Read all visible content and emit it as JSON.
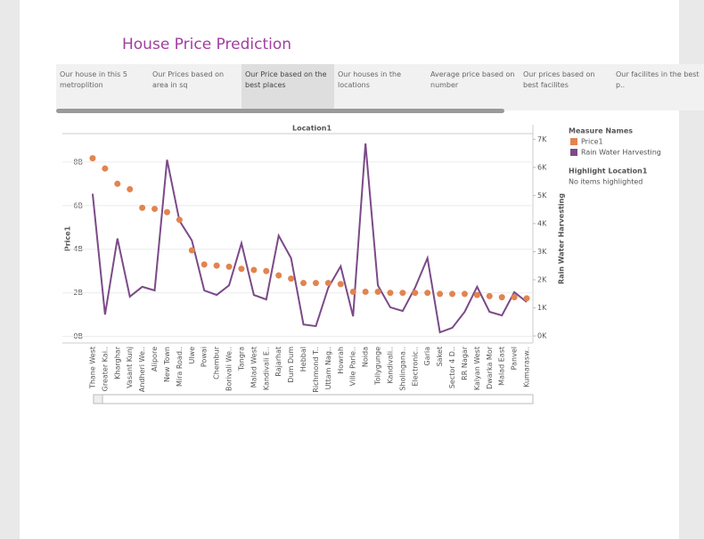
{
  "title": "House Price Prediction",
  "tabs": [
    "Our house in this 5 metroplition",
    "Our Prices based on area in sq",
    "Our Price based on the best places",
    "Our houses in the locations",
    "Average price based on number",
    "Our prices based on best facilites",
    "Our facilites in the best p.."
  ],
  "legend_title": "Measure Names",
  "highlight_title": "Highlight Location1",
  "highlight_text": "No items highlighted",
  "chart_data": {
    "type": "dual-axis",
    "header": "Location1",
    "y_label": "Price1",
    "y2_label": "Rain Water Harvesting",
    "categories": [
      "Thane West",
      "Greater Kai..",
      "Kharghar",
      "Vasant Kunj",
      "Andheri We..",
      "Alipore",
      "New Town",
      "Mira Road..",
      "Ulwe",
      "Powai",
      "Chembur",
      "Borivali We..",
      "Tangra",
      "Malad West",
      "Kandivali E..",
      "Rajarhat",
      "Dum Dum",
      "Hebbal",
      "Richmond T..",
      "Uttam Nag..",
      "Howrah",
      "Ville Parle..",
      "Noida",
      "Tollygunge",
      "Kandivali..",
      "Sholingana..",
      "Electronic..",
      "Garia",
      "Saket",
      "Sector 4 D..",
      "RR Nagar",
      "Kalyan West",
      "Dwarka Mor",
      "Malad East",
      "Panvel",
      "Kumarasw.."
    ],
    "series": [
      {
        "name": "Price1",
        "color": "#e2844f",
        "mark": "dot",
        "values": [
          8170000000,
          7700000000,
          7000000000,
          6750000000,
          5900000000,
          5850000000,
          5700000000,
          5350000000,
          3950000000,
          3300000000,
          3250000000,
          3200000000,
          3100000000,
          3050000000,
          3000000000,
          2800000000,
          2650000000,
          2450000000,
          2450000000,
          2450000000,
          2400000000,
          2050000000,
          2050000000,
          2050000000,
          2000000000,
          2000000000,
          2000000000,
          2000000000,
          1950000000,
          1950000000,
          1950000000,
          1900000000,
          1850000000,
          1800000000,
          1800000000,
          1750000000
        ]
      },
      {
        "name": "Rain Water Harvesting",
        "color": "#7b4a88",
        "mark": "line",
        "axis": "y2",
        "values": [
          5060,
          760,
          3470,
          1400,
          1750,
          1620,
          6270,
          4100,
          3400,
          1620,
          1460,
          1800,
          3300,
          1460,
          1300,
          3570,
          2770,
          410,
          350,
          1720,
          2480,
          700,
          6850,
          1800,
          1020,
          890,
          1720,
          2770,
          130,
          290,
          860,
          1750,
          860,
          730,
          1560,
          1210
        ]
      }
    ],
    "ylim": [
      -300000000,
      9300000000
    ],
    "yticks": [
      {
        "value": 0,
        "label": "0B"
      },
      {
        "value": 2000000000,
        "label": "2B"
      },
      {
        "value": 4000000000,
        "label": "4B"
      },
      {
        "value": 6000000000,
        "label": "6B"
      },
      {
        "value": 8000000000,
        "label": "8B"
      }
    ],
    "y2lim": [
      -250,
      7200
    ],
    "y2ticks": [
      {
        "value": 0,
        "label": "0K"
      },
      {
        "value": 1000,
        "label": "1K"
      },
      {
        "value": 2000,
        "label": "2K"
      },
      {
        "value": 3000,
        "label": "3K"
      },
      {
        "value": 4000,
        "label": "4K"
      },
      {
        "value": 5000,
        "label": "5K"
      },
      {
        "value": 6000,
        "label": "6K"
      },
      {
        "value": 7000,
        "label": "7K"
      }
    ],
    "grid": true
  }
}
